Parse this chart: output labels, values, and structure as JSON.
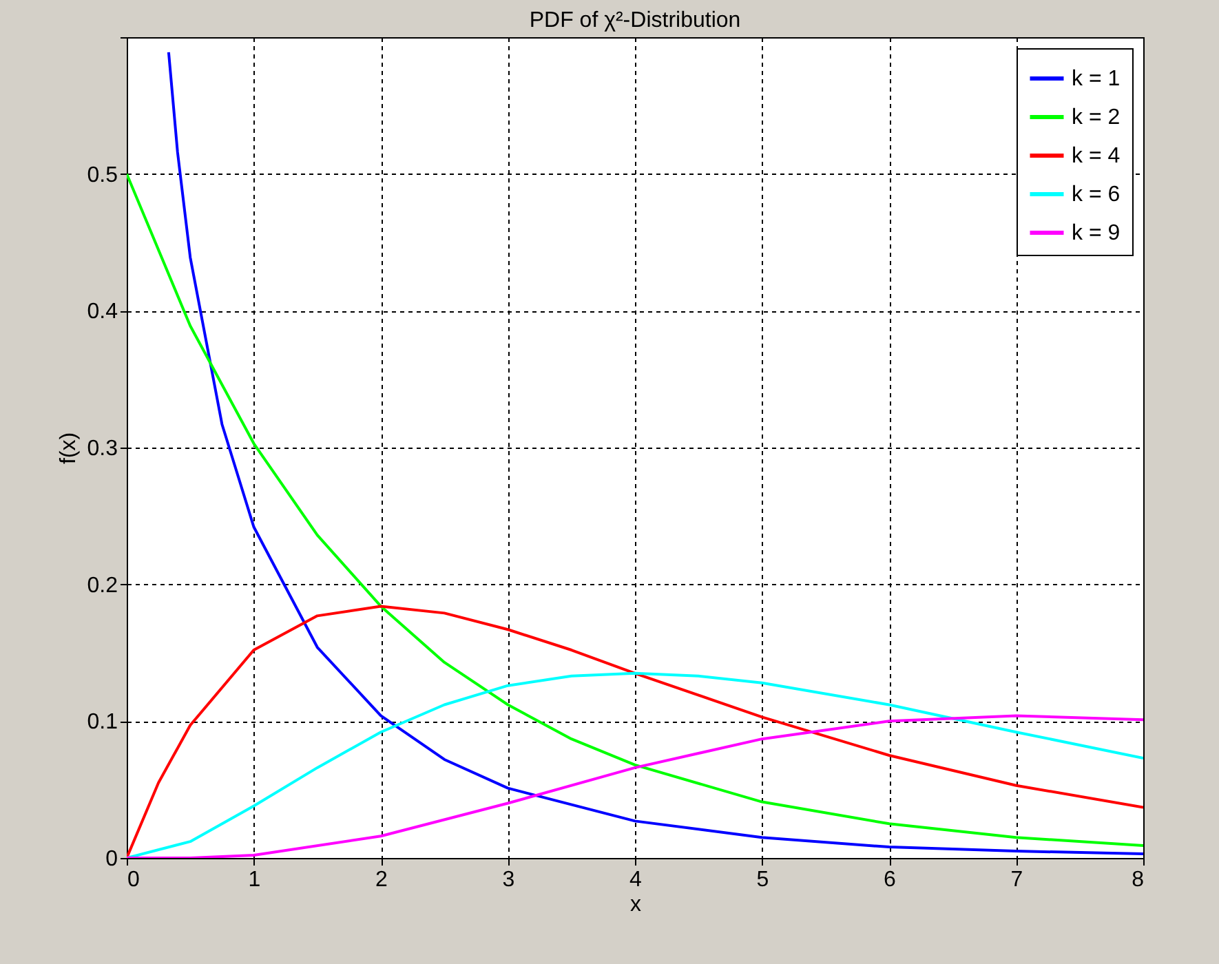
{
  "chart_data": {
    "type": "line",
    "title": "PDF of χ²-Distribution",
    "xlabel": "x",
    "ylabel": "f(x)",
    "xlim": [
      0,
      8
    ],
    "ylim": [
      0,
      0.6
    ],
    "xticks": [
      0,
      1,
      2,
      3,
      4,
      5,
      6,
      7,
      8
    ],
    "yticks": [
      0,
      0.1,
      0.2,
      0.3,
      0.4,
      0.5,
      {
        "value": 0.6,
        "label": null
      }
    ],
    "grid": true,
    "legend": "top right",
    "line_style": "solid",
    "marker": "none",
    "series": [
      {
        "name": "k = 1",
        "color": "#0000ff",
        "x": [
          0.33,
          0.4,
          0.5,
          0.75,
          1,
          1.5,
          2,
          2.5,
          3,
          4,
          5,
          6,
          7,
          8
        ],
        "values": [
          0.589,
          0.516,
          0.439,
          0.317,
          0.242,
          0.154,
          0.104,
          0.072,
          0.051,
          0.027,
          0.015,
          0.008,
          0.005,
          0.003
        ]
      },
      {
        "name": "k = 2",
        "color": "#00ff00",
        "x": [
          0,
          0.5,
          1,
          1.5,
          2,
          2.5,
          3,
          3.5,
          4,
          5,
          6,
          7,
          8
        ],
        "values": [
          0.5,
          0.389,
          0.303,
          0.236,
          0.184,
          0.143,
          0.112,
          0.087,
          0.068,
          0.041,
          0.025,
          0.015,
          0.009
        ]
      },
      {
        "name": "k = 4",
        "color": "#ff0000",
        "x": [
          0,
          0.25,
          0.5,
          1,
          1.5,
          2,
          2.5,
          3,
          3.5,
          4,
          5,
          6,
          7,
          8
        ],
        "values": [
          0,
          0.055,
          0.097,
          0.152,
          0.177,
          0.184,
          0.179,
          0.167,
          0.152,
          0.135,
          0.103,
          0.075,
          0.053,
          0.037
        ]
      },
      {
        "name": "k = 6",
        "color": "#00ffff",
        "x": [
          0,
          0.5,
          1,
          1.5,
          2,
          2.5,
          3,
          3.5,
          4,
          4.5,
          5,
          6,
          7,
          8
        ],
        "values": [
          0,
          0.012,
          0.038,
          0.066,
          0.092,
          0.112,
          0.126,
          0.133,
          0.135,
          0.133,
          0.128,
          0.112,
          0.092,
          0.073
        ]
      },
      {
        "name": "k = 9",
        "color": "#ff00ff",
        "x": [
          0,
          0.5,
          1,
          2,
          3,
          4,
          5,
          6,
          7,
          8
        ],
        "values": [
          0,
          0,
          0.002,
          0.016,
          0.04,
          0.066,
          0.087,
          0.1,
          0.104,
          0.101
        ]
      }
    ]
  }
}
